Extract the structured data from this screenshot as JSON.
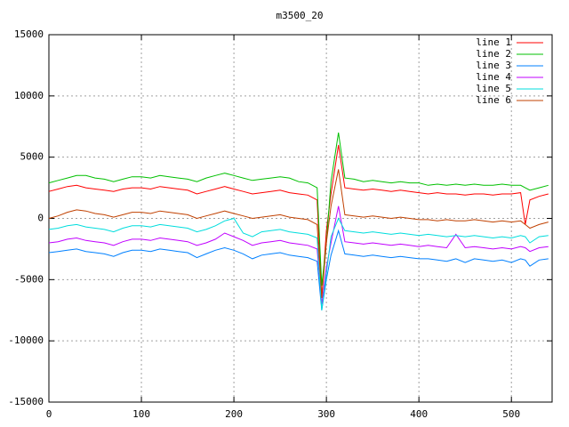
{
  "chart_data": {
    "type": "line",
    "title": "m3500_20",
    "x": [
      0,
      10,
      20,
      30,
      40,
      50,
      60,
      70,
      80,
      90,
      100,
      110,
      120,
      130,
      140,
      150,
      160,
      170,
      180,
      190,
      200,
      210,
      220,
      230,
      240,
      250,
      260,
      270,
      280,
      290,
      295,
      300,
      305,
      313,
      320,
      330,
      340,
      350,
      360,
      370,
      380,
      390,
      400,
      410,
      420,
      430,
      440,
      450,
      460,
      470,
      480,
      490,
      500,
      510,
      515,
      520,
      530,
      540
    ],
    "series": [
      {
        "name": "line 1",
        "color": "#ff0000",
        "values": [
          2200,
          2400,
          2600,
          2700,
          2500,
          2400,
          2300,
          2200,
          2400,
          2500,
          2500,
          2400,
          2600,
          2500,
          2400,
          2300,
          2000,
          2200,
          2400,
          2600,
          2400,
          2200,
          2000,
          2100,
          2200,
          2300,
          2100,
          2000,
          1900,
          1500,
          -6500,
          -1000,
          2000,
          6000,
          2500,
          2400,
          2300,
          2400,
          2300,
          2200,
          2300,
          2200,
          2100,
          2000,
          2100,
          2000,
          2000,
          1900,
          2000,
          2000,
          1900,
          2000,
          2000,
          2100,
          -500,
          1500,
          1800,
          2000
        ]
      },
      {
        "name": "line 2",
        "color": "#00c000",
        "values": [
          2900,
          3100,
          3300,
          3500,
          3500,
          3300,
          3200,
          3000,
          3200,
          3400,
          3400,
          3300,
          3500,
          3400,
          3300,
          3200,
          3000,
          3300,
          3500,
          3700,
          3500,
          3300,
          3100,
          3200,
          3300,
          3400,
          3300,
          3000,
          2900,
          2500,
          -5500,
          -2000,
          3000,
          7000,
          3300,
          3200,
          3000,
          3100,
          3000,
          2900,
          3000,
          2900,
          2900,
          2700,
          2800,
          2700,
          2800,
          2700,
          2800,
          2700,
          2700,
          2800,
          2700,
          2700,
          2500,
          2300,
          2500,
          2700
        ]
      },
      {
        "name": "line 3",
        "color": "#0080ff",
        "values": [
          -2800,
          -2700,
          -2600,
          -2500,
          -2700,
          -2800,
          -2900,
          -3100,
          -2800,
          -2600,
          -2600,
          -2700,
          -2500,
          -2600,
          -2700,
          -2800,
          -3200,
          -2900,
          -2600,
          -2400,
          -2600,
          -2900,
          -3300,
          -3000,
          -2900,
          -2800,
          -3000,
          -3100,
          -3200,
          -3500,
          -7500,
          -5000,
          -3000,
          -1000,
          -2900,
          -3000,
          -3100,
          -3000,
          -3100,
          -3200,
          -3100,
          -3200,
          -3300,
          -3300,
          -3400,
          -3500,
          -3300,
          -3600,
          -3300,
          -3400,
          -3500,
          -3400,
          -3600,
          -3300,
          -3400,
          -3900,
          -3400,
          -3300
        ]
      },
      {
        "name": "line 4",
        "color": "#c000ff",
        "values": [
          -2000,
          -1900,
          -1700,
          -1600,
          -1800,
          -1900,
          -2000,
          -2200,
          -1900,
          -1700,
          -1700,
          -1800,
          -1600,
          -1700,
          -1800,
          -1900,
          -2200,
          -2000,
          -1700,
          -1200,
          -1500,
          -1800,
          -2200,
          -2000,
          -1900,
          -1800,
          -2000,
          -2100,
          -2200,
          -2500,
          -7000,
          -4000,
          -2000,
          1000,
          -1900,
          -2000,
          -2100,
          -2000,
          -2100,
          -2200,
          -2100,
          -2200,
          -2300,
          -2200,
          -2300,
          -2400,
          -1300,
          -2400,
          -2300,
          -2400,
          -2500,
          -2400,
          -2500,
          -2300,
          -2400,
          -2700,
          -2400,
          -2300
        ]
      },
      {
        "name": "line 5",
        "color": "#00dddd",
        "values": [
          -900,
          -800,
          -600,
          -500,
          -700,
          -800,
          -900,
          -1100,
          -800,
          -600,
          -600,
          -700,
          -500,
          -600,
          -700,
          -800,
          -1100,
          -900,
          -600,
          -200,
          0,
          -1200,
          -1500,
          -1100,
          -1000,
          -900,
          -1100,
          -1200,
          -1300,
          -1600,
          -7500,
          -4500,
          -1500,
          0,
          -1000,
          -1100,
          -1200,
          -1100,
          -1200,
          -1300,
          -1200,
          -1300,
          -1400,
          -1300,
          -1400,
          -1500,
          -1400,
          -1500,
          -1400,
          -1500,
          -1600,
          -1500,
          -1600,
          -1400,
          -1500,
          -2000,
          -1500,
          -1400
        ]
      },
      {
        "name": "line 6",
        "color": "#c04000",
        "values": [
          0,
          200,
          500,
          700,
          600,
          400,
          300,
          100,
          300,
          500,
          500,
          400,
          600,
          500,
          400,
          300,
          0,
          200,
          400,
          600,
          400,
          200,
          0,
          100,
          200,
          300,
          100,
          0,
          -100,
          -500,
          -6500,
          -2000,
          1000,
          4000,
          300,
          200,
          100,
          200,
          100,
          0,
          100,
          0,
          -100,
          -100,
          -200,
          -100,
          -200,
          -200,
          -100,
          -200,
          -300,
          -200,
          -300,
          -200,
          -500,
          -800,
          -500,
          -300
        ]
      }
    ],
    "xlim": [
      0,
      544
    ],
    "xticks": [
      0,
      100,
      200,
      300,
      400,
      500
    ],
    "ylim": [
      -15000,
      15000
    ],
    "yticks": [
      -15000,
      -10000,
      -5000,
      0,
      5000,
      10000,
      15000
    ],
    "grid": true,
    "legend": "top-right"
  }
}
